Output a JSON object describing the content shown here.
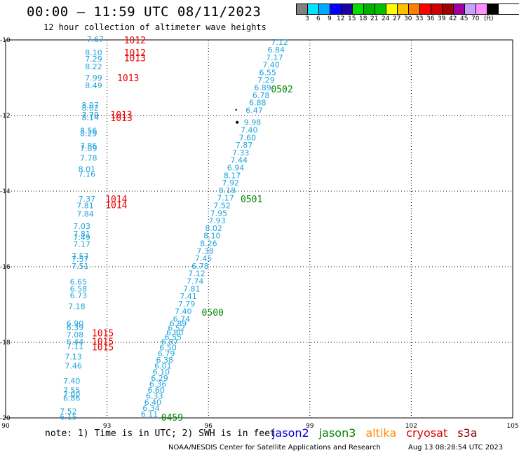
{
  "title": "00:00 – 11:59 UTC 08/11/2023",
  "subtitle": "12 hour collection of altimeter wave heights",
  "legend": {
    "colors": [
      "#808080",
      "#00e5ff",
      "#00a8ff",
      "#0000ff",
      "#2000a0",
      "#00e000",
      "#00b000",
      "#00c000",
      "#ffff00",
      "#ffc000",
      "#ff8000",
      "#ff0000",
      "#d00000",
      "#a00000",
      "#a000a0",
      "#c8a0ff",
      "#ff90ff",
      "#000000"
    ],
    "labels": [
      "3",
      "6",
      "9",
      "12",
      "15",
      "18",
      "21",
      "24",
      "27",
      "30",
      "33",
      "36",
      "39",
      "42",
      "45",
      "70",
      "(ft)"
    ]
  },
  "map": {
    "x_ticks": [
      "90",
      "93",
      "96",
      "99",
      "102",
      "105"
    ],
    "y_ticks": [
      "-10",
      "-12",
      "-14",
      "-16",
      "-18",
      "-20"
    ],
    "lon_range": [
      90,
      105
    ],
    "lat_range": [
      -20,
      -10
    ]
  },
  "pressures": [
    {
      "text": "1012",
      "lon": 93.5,
      "lat": -10.0
    },
    {
      "text": "1012",
      "lon": 93.5,
      "lat": -10.33
    },
    {
      "text": "1013",
      "lon": 93.5,
      "lat": -10.47
    },
    {
      "text": "1013",
      "lon": 93.3,
      "lat": -11.0
    },
    {
      "text": "1013",
      "lon": 93.1,
      "lat": -11.97
    },
    {
      "text": "1013",
      "lon": 93.1,
      "lat": -12.06
    },
    {
      "text": "1014",
      "lon": 92.95,
      "lat": -14.2
    },
    {
      "text": "1014",
      "lon": 92.95,
      "lat": -14.36
    },
    {
      "text": "1015",
      "lon": 92.55,
      "lat": -17.75
    },
    {
      "text": "1015",
      "lon": 92.55,
      "lat": -17.97
    },
    {
      "text": "1015",
      "lon": 92.55,
      "lat": -18.12
    }
  ],
  "track_labels": [
    {
      "text": "0502",
      "lon": 97.85,
      "lat": -11.3
    },
    {
      "text": "0501",
      "lon": 96.95,
      "lat": -14.2
    },
    {
      "text": "0500",
      "lon": 95.8,
      "lat": -17.2
    },
    {
      "text": "0459",
      "lon": 94.6,
      "lat": -19.98
    }
  ],
  "left_column": [
    {
      "v": "7.67",
      "lon": 92.4,
      "lat": -9.98
    },
    {
      "v": "8.10",
      "lon": 92.35,
      "lat": -10.33
    },
    {
      "v": "7.29",
      "lon": 92.35,
      "lat": -10.5
    },
    {
      "v": "8.22",
      "lon": 92.35,
      "lat": -10.7
    },
    {
      "v": "7.99",
      "lon": 92.35,
      "lat": -11.0
    },
    {
      "v": "8.49",
      "lon": 92.35,
      "lat": -11.2
    },
    {
      "v": "8.07",
      "lon": 92.25,
      "lat": -11.72
    },
    {
      "v": "8.02",
      "lon": 92.25,
      "lat": -11.8
    },
    {
      "v": "7.70",
      "lon": 92.25,
      "lat": -11.98
    },
    {
      "v": "8.14",
      "lon": 92.25,
      "lat": -12.05
    },
    {
      "v": "8.56",
      "lon": 92.2,
      "lat": -12.4
    },
    {
      "v": "8.29",
      "lon": 92.2,
      "lat": -12.47
    },
    {
      "v": "7.86",
      "lon": 92.2,
      "lat": -12.8
    },
    {
      "v": "7.89",
      "lon": 92.2,
      "lat": -12.87
    },
    {
      "v": "7.78",
      "lon": 92.2,
      "lat": -13.12
    },
    {
      "v": "8.01",
      "lon": 92.15,
      "lat": -13.42
    },
    {
      "v": "7.16",
      "lon": 92.15,
      "lat": -13.55
    },
    {
      "v": "7.37",
      "lon": 92.15,
      "lat": -14.2
    },
    {
      "v": "7.81",
      "lon": 92.1,
      "lat": -14.38
    },
    {
      "v": "7.84",
      "lon": 92.1,
      "lat": -14.6
    },
    {
      "v": "7.03",
      "lon": 92.0,
      "lat": -14.93
    },
    {
      "v": "7.81",
      "lon": 92.0,
      "lat": -15.13
    },
    {
      "v": "7.49",
      "lon": 92.0,
      "lat": -15.22
    },
    {
      "v": "7.17",
      "lon": 92.0,
      "lat": -15.4
    },
    {
      "v": "7.57",
      "lon": 91.95,
      "lat": -15.72
    },
    {
      "v": "7.57",
      "lon": 91.95,
      "lat": -15.8
    },
    {
      "v": "7.51",
      "lon": 91.95,
      "lat": -15.98
    },
    {
      "v": "6.65",
      "lon": 91.9,
      "lat": -16.4
    },
    {
      "v": "6.58",
      "lon": 91.9,
      "lat": -16.58
    },
    {
      "v": "6.73",
      "lon": 91.9,
      "lat": -16.76
    },
    {
      "v": "7.18",
      "lon": 91.85,
      "lat": -17.05
    },
    {
      "v": "6.90",
      "lon": 91.8,
      "lat": -17.5
    },
    {
      "v": "6.39",
      "lon": 91.8,
      "lat": -17.6
    },
    {
      "v": "7.08",
      "lon": 91.8,
      "lat": -17.8
    },
    {
      "v": "6.44",
      "lon": 91.8,
      "lat": -17.98
    },
    {
      "v": "7.11",
      "lon": 91.8,
      "lat": -18.1
    },
    {
      "v": "7.13",
      "lon": 91.75,
      "lat": -18.38
    },
    {
      "v": "7.46",
      "lon": 91.75,
      "lat": -18.62
    },
    {
      "v": "7.40",
      "lon": 91.7,
      "lat": -19.02
    },
    {
      "v": "7.55",
      "lon": 91.7,
      "lat": -19.27
    },
    {
      "v": "7.00",
      "lon": 91.7,
      "lat": -19.37
    },
    {
      "v": "6.86",
      "lon": 91.7,
      "lat": -19.47
    },
    {
      "v": "7.52",
      "lon": 91.6,
      "lat": -19.82
    },
    {
      "v": "6.15",
      "lon": 91.6,
      "lat": -19.97
    }
  ],
  "track": [
    {
      "v": "7.12",
      "lon": 97.85,
      "lat": -10.06
    },
    {
      "v": "6.84",
      "lon": 97.75,
      "lat": -10.26
    },
    {
      "v": "7.17",
      "lon": 97.7,
      "lat": -10.46
    },
    {
      "v": "7.40",
      "lon": 97.6,
      "lat": -10.66
    },
    {
      "v": "6.55",
      "lon": 97.5,
      "lat": -10.86
    },
    {
      "v": "7.29",
      "lon": 97.45,
      "lat": -11.06
    },
    {
      "v": "6.89",
      "lon": 97.35,
      "lat": -11.26
    },
    {
      "v": "6.78",
      "lon": 97.3,
      "lat": -11.46
    },
    {
      "v": "6.88",
      "lon": 97.2,
      "lat": -11.66
    },
    {
      "v": "6.47",
      "lon": 97.1,
      "lat": -11.86
    },
    {
      "v": "9.98",
      "lon": 97.05,
      "lat": -12.18
    },
    {
      "v": "7.40",
      "lon": 96.95,
      "lat": -12.38
    },
    {
      "v": "7.60",
      "lon": 96.9,
      "lat": -12.58
    },
    {
      "v": "7.87",
      "lon": 96.8,
      "lat": -12.78
    },
    {
      "v": "7.33",
      "lon": 96.7,
      "lat": -12.98
    },
    {
      "v": "7.44",
      "lon": 96.65,
      "lat": -13.18
    },
    {
      "v": "6.94",
      "lon": 96.55,
      "lat": -13.38
    },
    {
      "v": "8.17",
      "lon": 96.45,
      "lat": -13.58
    },
    {
      "v": "7.92",
      "lon": 96.4,
      "lat": -13.78
    },
    {
      "v": "8.18",
      "lon": 96.3,
      "lat": -13.98
    },
    {
      "v": "7.17",
      "lon": 96.25,
      "lat": -14.18
    },
    {
      "v": "7.52",
      "lon": 96.15,
      "lat": -14.38
    },
    {
      "v": "7.95",
      "lon": 96.05,
      "lat": -14.58
    },
    {
      "v": "7.93",
      "lon": 96.0,
      "lat": -14.78
    },
    {
      "v": "8.02",
      "lon": 95.9,
      "lat": -14.98
    },
    {
      "v": "8.10",
      "lon": 95.85,
      "lat": -15.18
    },
    {
      "v": "8.26",
      "lon": 95.75,
      "lat": -15.38
    },
    {
      "v": "7.38",
      "lon": 95.65,
      "lat": -15.58
    },
    {
      "v": "7.45",
      "lon": 95.6,
      "lat": -15.78
    },
    {
      "v": "6.78",
      "lon": 95.5,
      "lat": -15.98
    },
    {
      "v": "7.12",
      "lon": 95.4,
      "lat": -16.18
    },
    {
      "v": "7.74",
      "lon": 95.35,
      "lat": -16.38
    },
    {
      "v": "7.81",
      "lon": 95.25,
      "lat": -16.58
    },
    {
      "v": "7.41",
      "lon": 95.15,
      "lat": -16.78
    },
    {
      "v": "7.79",
      "lon": 95.1,
      "lat": -16.98
    },
    {
      "v": "7.40",
      "lon": 95.0,
      "lat": -17.18
    },
    {
      "v": "6.74",
      "lon": 94.95,
      "lat": -17.38
    },
    {
      "v": "6.89",
      "lon": 94.85,
      "lat": -17.5
    },
    {
      "v": "6.52",
      "lon": 94.8,
      "lat": -17.62
    },
    {
      "v": "6.80",
      "lon": 94.75,
      "lat": -17.74
    },
    {
      "v": "6.55",
      "lon": 94.7,
      "lat": -17.86
    },
    {
      "v": "6.87",
      "lon": 94.6,
      "lat": -17.98
    },
    {
      "v": "6.50",
      "lon": 94.55,
      "lat": -18.14
    },
    {
      "v": "6.79",
      "lon": 94.5,
      "lat": -18.3
    },
    {
      "v": "6.38",
      "lon": 94.45,
      "lat": -18.46
    },
    {
      "v": "6.01",
      "lon": 94.4,
      "lat": -18.62
    },
    {
      "v": "6.10",
      "lon": 94.35,
      "lat": -18.78
    },
    {
      "v": "6.29",
      "lon": 94.3,
      "lat": -18.94
    },
    {
      "v": "6.36",
      "lon": 94.25,
      "lat": -19.1
    },
    {
      "v": "6.60",
      "lon": 94.2,
      "lat": -19.26
    },
    {
      "v": "6.33",
      "lon": 94.15,
      "lat": -19.42
    },
    {
      "v": "6.40",
      "lon": 94.1,
      "lat": -19.58
    },
    {
      "v": "6.34",
      "lon": 94.05,
      "lat": -19.74
    },
    {
      "v": "6.11",
      "lon": 94.0,
      "lat": -19.9
    }
  ],
  "note": "note: 1) Time is in UTC; 2) SWH is in feet",
  "satellites": [
    {
      "name": "jason2",
      "color": "#0000dd"
    },
    {
      "name": "jason3",
      "color": "#008800"
    },
    {
      "name": "altika",
      "color": "#ff8c00"
    },
    {
      "name": "cryosat",
      "color": "#dd0000"
    },
    {
      "name": "s3a",
      "color": "#8b0000"
    }
  ],
  "credit": "NOAA/NESDIS Center for Satellite Applications and Research",
  "timestamp": "Aug 13 08:28:54 UTC 2023"
}
